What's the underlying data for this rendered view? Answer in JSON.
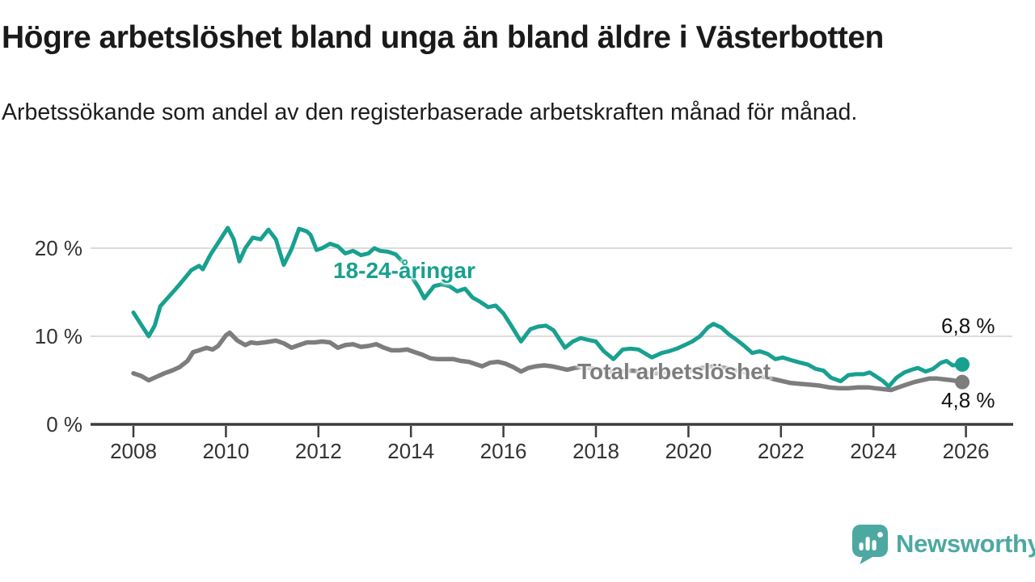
{
  "header": {
    "title": "Högre arbetslöshet bland unga än bland äldre i Västerbotten",
    "subtitle": "Arbetssökande som andel av den registerbaserade arbetskraften månad för månad."
  },
  "branding": {
    "logo_text": "Newsworthy",
    "logo_color": "#4da8a2"
  },
  "chart_data": {
    "type": "line",
    "title": "Högre arbetslöshet bland unga än bland äldre i Västerbotten",
    "subtitle": "Arbetssökande som andel av den registerbaserade arbetskraften månad för månad.",
    "unit": "%",
    "grid": true,
    "x_axis": {
      "ticks": [
        2008,
        2010,
        2012,
        2014,
        2016,
        2018,
        2020,
        2022,
        2024,
        2026
      ],
      "range": [
        2007.1,
        2027.0
      ]
    },
    "y_axis": {
      "ticks": [
        {
          "value": 0,
          "label": "0 %"
        },
        {
          "value": 10,
          "label": "10 %"
        },
        {
          "value": 20,
          "label": "20 %"
        }
      ],
      "range": [
        0,
        23.5
      ]
    },
    "axis_color": "#3d3d3d",
    "grid_color": "#dcdcdc",
    "series": [
      {
        "name": "18-24-åringar",
        "color": "#18a090",
        "end_label": "6,8 %",
        "end_value": 6.8,
        "points": [
          [
            2008.0,
            12.7
          ],
          [
            2008.17,
            11.3
          ],
          [
            2008.33,
            10.0
          ],
          [
            2008.46,
            11.2
          ],
          [
            2008.58,
            13.4
          ],
          [
            2008.75,
            14.4
          ],
          [
            2008.92,
            15.4
          ],
          [
            2009.08,
            16.4
          ],
          [
            2009.25,
            17.5
          ],
          [
            2009.42,
            18.0
          ],
          [
            2009.5,
            17.6
          ],
          [
            2009.67,
            19.3
          ],
          [
            2009.83,
            20.6
          ],
          [
            2010.04,
            22.3
          ],
          [
            2010.17,
            21.0
          ],
          [
            2010.29,
            18.5
          ],
          [
            2010.42,
            20.0
          ],
          [
            2010.58,
            21.2
          ],
          [
            2010.75,
            21.0
          ],
          [
            2010.92,
            22.1
          ],
          [
            2011.08,
            21.0
          ],
          [
            2011.25,
            18.1
          ],
          [
            2011.42,
            19.9
          ],
          [
            2011.58,
            22.2
          ],
          [
            2011.75,
            21.9
          ],
          [
            2011.83,
            21.5
          ],
          [
            2011.96,
            19.8
          ],
          [
            2012.08,
            20.0
          ],
          [
            2012.25,
            20.5
          ],
          [
            2012.42,
            20.2
          ],
          [
            2012.58,
            19.4
          ],
          [
            2012.75,
            19.7
          ],
          [
            2012.92,
            19.2
          ],
          [
            2013.08,
            19.4
          ],
          [
            2013.21,
            20.0
          ],
          [
            2013.33,
            19.7
          ],
          [
            2013.5,
            19.6
          ],
          [
            2013.67,
            19.3
          ],
          [
            2013.83,
            18.4
          ],
          [
            2014.0,
            16.9
          ],
          [
            2014.17,
            15.5
          ],
          [
            2014.29,
            14.3
          ],
          [
            2014.5,
            15.7
          ],
          [
            2014.67,
            15.9
          ],
          [
            2014.83,
            15.7
          ],
          [
            2015.0,
            15.1
          ],
          [
            2015.17,
            15.4
          ],
          [
            2015.33,
            14.4
          ],
          [
            2015.5,
            13.9
          ],
          [
            2015.67,
            13.3
          ],
          [
            2015.83,
            13.5
          ],
          [
            2016.0,
            12.6
          ],
          [
            2016.17,
            11.2
          ],
          [
            2016.38,
            9.4
          ],
          [
            2016.58,
            10.8
          ],
          [
            2016.75,
            11.1
          ],
          [
            2016.92,
            11.2
          ],
          [
            2017.08,
            10.7
          ],
          [
            2017.33,
            8.7
          ],
          [
            2017.5,
            9.4
          ],
          [
            2017.67,
            9.8
          ],
          [
            2017.83,
            9.6
          ],
          [
            2018.0,
            9.4
          ],
          [
            2018.17,
            8.3
          ],
          [
            2018.38,
            7.4
          ],
          [
            2018.58,
            8.5
          ],
          [
            2018.75,
            8.6
          ],
          [
            2018.92,
            8.5
          ],
          [
            2019.08,
            8.0
          ],
          [
            2019.21,
            7.6
          ],
          [
            2019.42,
            8.1
          ],
          [
            2019.58,
            8.3
          ],
          [
            2019.75,
            8.6
          ],
          [
            2019.92,
            9.0
          ],
          [
            2020.08,
            9.4
          ],
          [
            2020.25,
            10.0
          ],
          [
            2020.42,
            11.0
          ],
          [
            2020.54,
            11.4
          ],
          [
            2020.71,
            11.0
          ],
          [
            2020.88,
            10.2
          ],
          [
            2021.04,
            9.6
          ],
          [
            2021.21,
            8.9
          ],
          [
            2021.38,
            8.1
          ],
          [
            2021.54,
            8.3
          ],
          [
            2021.71,
            8.0
          ],
          [
            2021.88,
            7.4
          ],
          [
            2022.04,
            7.6
          ],
          [
            2022.21,
            7.3
          ],
          [
            2022.42,
            7.0
          ],
          [
            2022.58,
            6.8
          ],
          [
            2022.75,
            6.3
          ],
          [
            2022.92,
            6.1
          ],
          [
            2023.08,
            5.3
          ],
          [
            2023.29,
            4.9
          ],
          [
            2023.46,
            5.6
          ],
          [
            2023.63,
            5.7
          ],
          [
            2023.79,
            5.7
          ],
          [
            2023.92,
            5.9
          ],
          [
            2024.04,
            5.5
          ],
          [
            2024.21,
            4.9
          ],
          [
            2024.33,
            4.3
          ],
          [
            2024.5,
            5.3
          ],
          [
            2024.67,
            5.9
          ],
          [
            2024.83,
            6.2
          ],
          [
            2024.96,
            6.4
          ],
          [
            2025.13,
            6.0
          ],
          [
            2025.29,
            6.3
          ],
          [
            2025.46,
            7.0
          ],
          [
            2025.58,
            7.2
          ],
          [
            2025.71,
            6.7
          ],
          [
            2025.92,
            6.8
          ]
        ]
      },
      {
        "name": "Total arbetslöshet",
        "color": "#7d7d7d",
        "end_label": "4,8 %",
        "end_value": 4.8,
        "points": [
          [
            2008.0,
            5.8
          ],
          [
            2008.17,
            5.5
          ],
          [
            2008.33,
            5.0
          ],
          [
            2008.5,
            5.4
          ],
          [
            2008.67,
            5.8
          ],
          [
            2008.83,
            6.1
          ],
          [
            2009.0,
            6.5
          ],
          [
            2009.17,
            7.2
          ],
          [
            2009.29,
            8.2
          ],
          [
            2009.42,
            8.4
          ],
          [
            2009.58,
            8.7
          ],
          [
            2009.71,
            8.5
          ],
          [
            2009.83,
            8.9
          ],
          [
            2010.0,
            10.1
          ],
          [
            2010.08,
            10.4
          ],
          [
            2010.25,
            9.5
          ],
          [
            2010.42,
            9.0
          ],
          [
            2010.54,
            9.3
          ],
          [
            2010.67,
            9.2
          ],
          [
            2010.83,
            9.3
          ],
          [
            2010.96,
            9.4
          ],
          [
            2011.08,
            9.5
          ],
          [
            2011.25,
            9.2
          ],
          [
            2011.42,
            8.7
          ],
          [
            2011.58,
            9.0
          ],
          [
            2011.75,
            9.3
          ],
          [
            2011.92,
            9.3
          ],
          [
            2012.08,
            9.4
          ],
          [
            2012.25,
            9.3
          ],
          [
            2012.42,
            8.7
          ],
          [
            2012.58,
            9.0
          ],
          [
            2012.75,
            9.1
          ],
          [
            2012.92,
            8.8
          ],
          [
            2013.08,
            8.9
          ],
          [
            2013.25,
            9.1
          ],
          [
            2013.42,
            8.7
          ],
          [
            2013.58,
            8.4
          ],
          [
            2013.75,
            8.4
          ],
          [
            2013.92,
            8.5
          ],
          [
            2014.08,
            8.2
          ],
          [
            2014.25,
            7.9
          ],
          [
            2014.42,
            7.5
          ],
          [
            2014.58,
            7.4
          ],
          [
            2014.75,
            7.4
          ],
          [
            2014.92,
            7.4
          ],
          [
            2015.08,
            7.2
          ],
          [
            2015.25,
            7.1
          ],
          [
            2015.42,
            6.8
          ],
          [
            2015.54,
            6.6
          ],
          [
            2015.71,
            7.0
          ],
          [
            2015.88,
            7.1
          ],
          [
            2016.04,
            6.9
          ],
          [
            2016.21,
            6.5
          ],
          [
            2016.38,
            6.0
          ],
          [
            2016.54,
            6.4
          ],
          [
            2016.71,
            6.6
          ],
          [
            2016.88,
            6.7
          ],
          [
            2017.04,
            6.6
          ],
          [
            2017.21,
            6.4
          ],
          [
            2017.38,
            6.2
          ],
          [
            2017.54,
            6.4
          ],
          [
            2017.71,
            6.5
          ],
          [
            2017.88,
            6.4
          ],
          [
            2018.04,
            6.2
          ],
          [
            2018.29,
            6.0
          ],
          [
            2018.54,
            6.0
          ],
          [
            2018.79,
            6.1
          ],
          [
            2019.04,
            5.9
          ],
          [
            2019.29,
            5.8
          ],
          [
            2019.54,
            5.9
          ],
          [
            2019.79,
            5.9
          ],
          [
            2020.04,
            6.1
          ],
          [
            2020.29,
            6.4
          ],
          [
            2020.54,
            6.6
          ],
          [
            2020.79,
            6.4
          ],
          [
            2021.04,
            6.1
          ],
          [
            2021.29,
            5.8
          ],
          [
            2021.54,
            5.5
          ],
          [
            2021.79,
            5.2
          ],
          [
            2022.04,
            4.9
          ],
          [
            2022.21,
            4.7
          ],
          [
            2022.42,
            4.6
          ],
          [
            2022.63,
            4.5
          ],
          [
            2022.83,
            4.4
          ],
          [
            2023.04,
            4.2
          ],
          [
            2023.25,
            4.1
          ],
          [
            2023.46,
            4.1
          ],
          [
            2023.67,
            4.2
          ],
          [
            2023.88,
            4.2
          ],
          [
            2024.04,
            4.1
          ],
          [
            2024.21,
            4.0
          ],
          [
            2024.38,
            3.9
          ],
          [
            2024.54,
            4.2
          ],
          [
            2024.71,
            4.5
          ],
          [
            2024.88,
            4.8
          ],
          [
            2025.04,
            5.0
          ],
          [
            2025.21,
            5.2
          ],
          [
            2025.38,
            5.2
          ],
          [
            2025.54,
            5.1
          ],
          [
            2025.71,
            5.0
          ],
          [
            2025.92,
            4.8
          ]
        ]
      }
    ]
  }
}
